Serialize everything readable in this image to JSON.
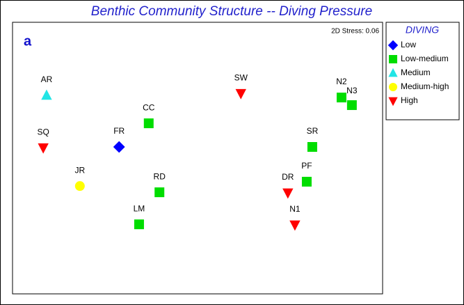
{
  "chart_data": {
    "type": "scatter",
    "title": "Benthic Community Structure -- Diving Pressure",
    "panel_label": "a",
    "stress_label": "2D Stress: 0.06",
    "legend_title": "DIVING",
    "xlim": [
      0,
      100
    ],
    "ylim": [
      0,
      100
    ],
    "series": [
      {
        "name": "Low",
        "color": "#0000ff",
        "marker": "diamond",
        "labels": [
          "FR"
        ],
        "x": [
          28.8
        ],
        "values": [
          54.1
        ]
      },
      {
        "name": "Low-medium",
        "color": "#00dd00",
        "marker": "square",
        "labels": [
          "CC",
          "RD",
          "LM",
          "N2",
          "N3",
          "SR",
          "PF"
        ],
        "x": [
          36.8,
          39.7,
          34.2,
          88.9,
          91.7,
          81.0,
          79.5
        ],
        "values": [
          62.8,
          37.4,
          25.6,
          72.3,
          69.5,
          54.1,
          41.3
        ]
      },
      {
        "name": "Medium",
        "color": "#22e5e5",
        "marker": "triangle-up",
        "labels": [
          "AR"
        ],
        "x": [
          9.2
        ],
        "values": [
          73.1
        ]
      },
      {
        "name": "Medium-high",
        "color": "#ffff00",
        "marker": "circle",
        "labels": [
          "JR"
        ],
        "x": [
          18.2
        ],
        "values": [
          39.7
        ]
      },
      {
        "name": "High",
        "color": "#ff0000",
        "marker": "triangle-down",
        "labels": [
          "SQ",
          "SW",
          "DR",
          "N1"
        ],
        "x": [
          8.3,
          61.7,
          74.4,
          76.3
        ],
        "values": [
          53.8,
          73.8,
          37.2,
          25.4
        ]
      }
    ]
  }
}
